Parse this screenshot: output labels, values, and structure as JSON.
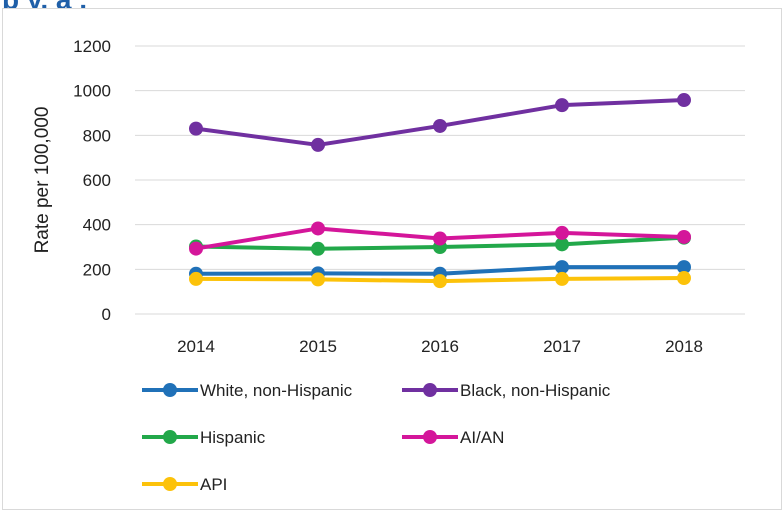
{
  "chart_data": {
    "type": "line",
    "title": "",
    "xlabel": "",
    "ylabel": "Rate per 100,000",
    "x": [
      "2014",
      "2015",
      "2016",
      "2017",
      "2018"
    ],
    "yticks": [
      "0",
      "200",
      "400",
      "600",
      "800",
      "1000",
      "1200"
    ],
    "ylim": [
      0,
      1200
    ],
    "grid": true,
    "legend_position": "bottom",
    "series": [
      {
        "name": "White, non-Hispanic",
        "color": "#2071b8",
        "values": [
          180,
          182,
          180,
          210,
          210
        ]
      },
      {
        "name": "Black, non-Hispanic",
        "color": "#7030a0",
        "values": [
          830,
          757,
          842,
          935,
          958
        ]
      },
      {
        "name": "Hispanic",
        "color": "#22a84a",
        "values": [
          302,
          292,
          300,
          312,
          342
        ]
      },
      {
        "name": "AI/AN",
        "color": "#d4169a",
        "values": [
          293,
          383,
          338,
          363,
          345
        ]
      },
      {
        "name": "API",
        "color": "#fcc20a",
        "values": [
          157,
          155,
          147,
          157,
          161
        ]
      }
    ]
  },
  "header": {
    "title_fragment": "p       y, a    ,  "
  }
}
